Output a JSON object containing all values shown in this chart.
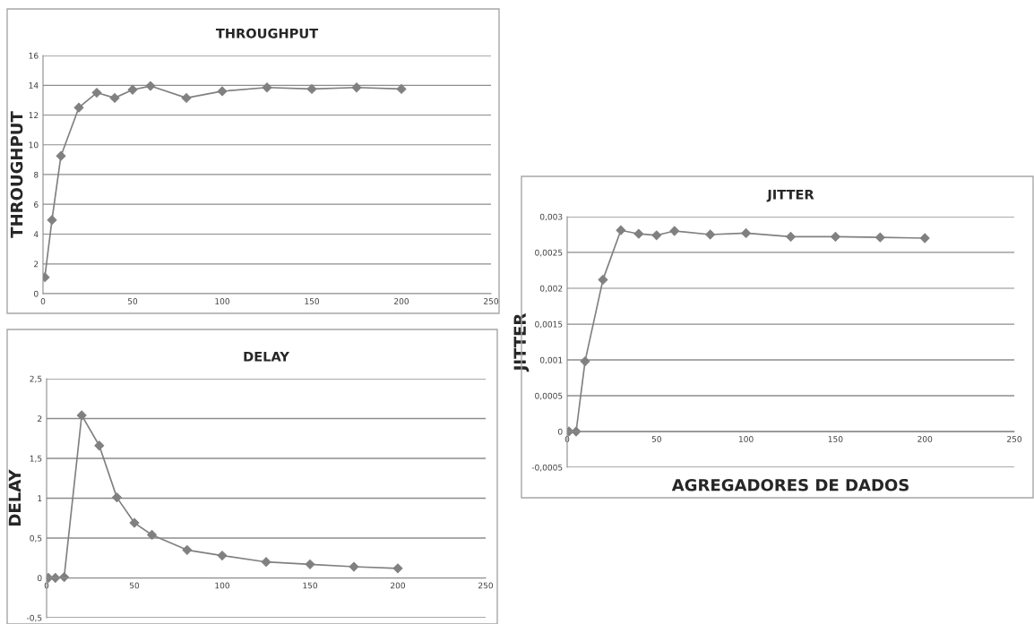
{
  "chart_data": [
    {
      "type": "line",
      "title": "THROUGHPUT",
      "ylabel": "THROUGHPUT",
      "x": [
        1,
        5,
        10,
        20,
        30,
        40,
        50,
        60,
        80,
        100,
        125,
        150,
        175,
        200
      ],
      "series": [
        {
          "color": "#808080",
          "values": [
            1.1,
            4.95,
            9.25,
            12.5,
            13.5,
            13.15,
            13.7,
            13.95,
            13.15,
            13.6,
            13.85,
            13.75,
            13.85,
            13.75
          ]
        }
      ],
      "xlim": [
        0,
        250
      ],
      "xticks": [
        0,
        50,
        100,
        150,
        200,
        250
      ],
      "ylim": [
        0,
        16
      ],
      "yticks": [
        0,
        2,
        4,
        6,
        8,
        10,
        12,
        14,
        16
      ],
      "grid": "y",
      "marker": "diamond",
      "line_style": "solid"
    },
    {
      "type": "line",
      "title": "DELAY",
      "ylabel": "DELAY",
      "x": [
        1,
        5,
        10,
        20,
        30,
        40,
        50,
        60,
        80,
        100,
        125,
        150,
        175,
        200
      ],
      "series": [
        {
          "color": "#808080",
          "values": [
            0,
            0,
            0.01,
            2.04,
            1.66,
            1.01,
            0.69,
            0.54,
            0.35,
            0.28,
            0.2,
            0.17,
            0.14,
            0.12
          ]
        }
      ],
      "xlim": [
        0,
        250
      ],
      "xticks": [
        0,
        50,
        100,
        150,
        200,
        250
      ],
      "ylim": [
        -0.5,
        2.5
      ],
      "yticks": [
        {
          "value": -0.5,
          "label": "-0,5"
        },
        0,
        {
          "value": 0.5,
          "label": "0,5"
        },
        1,
        {
          "value": 1.5,
          "label": "1,5"
        },
        2,
        {
          "value": 2.5,
          "label": "2,5"
        }
      ],
      "grid": "y",
      "marker": "diamond",
      "line_style": "solid"
    },
    {
      "type": "line",
      "title": "JITTER",
      "ylabel": "JITTER",
      "xlabel": "AGREGADORES DE DADOS",
      "x": [
        1,
        5,
        10,
        20,
        30,
        40,
        50,
        60,
        80,
        100,
        125,
        150,
        175,
        200
      ],
      "series": [
        {
          "color": "#808080",
          "values": [
            0,
            0,
            0.00098,
            0.00212,
            0.00281,
            0.00276,
            0.00274,
            0.0028,
            0.00275,
            0.00277,
            0.00272,
            0.00272,
            0.00271,
            0.0027
          ]
        }
      ],
      "xlim": [
        0,
        250
      ],
      "xticks": [
        0,
        50,
        100,
        150,
        200,
        250
      ],
      "ylim": [
        -0.0005,
        0.003
      ],
      "yticks": [
        {
          "value": -0.0005,
          "label": "-0,0005"
        },
        0,
        {
          "value": 0.0005,
          "label": "0,0005"
        },
        {
          "value": 0.001,
          "label": "0,001"
        },
        {
          "value": 0.0015,
          "label": "0,0015"
        },
        {
          "value": 0.002,
          "label": "0,002"
        },
        {
          "value": 0.0025,
          "label": "0,0025"
        },
        {
          "value": 0.003,
          "label": "0,003"
        }
      ],
      "grid": "y",
      "marker": "diamond",
      "line_style": "solid"
    }
  ]
}
